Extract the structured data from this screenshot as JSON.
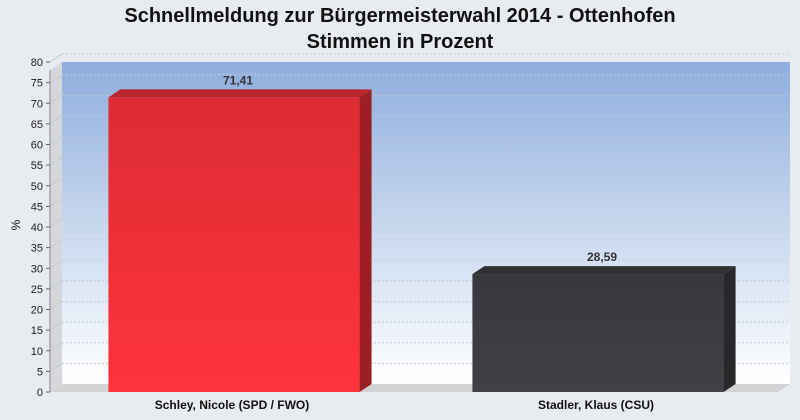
{
  "chart_data": {
    "type": "bar",
    "title": [
      "Schnellmeldung zur Bürgermeisterwahl 2014 - Ottenhofen",
      "Stimmen in Prozent"
    ],
    "ylabel": "%",
    "xlabel": "",
    "ylim": [
      0,
      80
    ],
    "yticks": [
      0,
      5,
      10,
      15,
      20,
      25,
      30,
      35,
      40,
      45,
      50,
      55,
      60,
      65,
      70,
      75,
      80
    ],
    "grid": true,
    "categories": [
      "Schley, Nicole (SPD / FWO)",
      "Stadler, Klaus (CSU)"
    ],
    "values": [
      71.41,
      28.59
    ],
    "value_labels": [
      "71,41",
      "28,59"
    ],
    "colors": [
      "#f03038",
      "#3c3d40"
    ],
    "background_gradient": [
      "#8eaede",
      "#ffffff"
    ]
  }
}
